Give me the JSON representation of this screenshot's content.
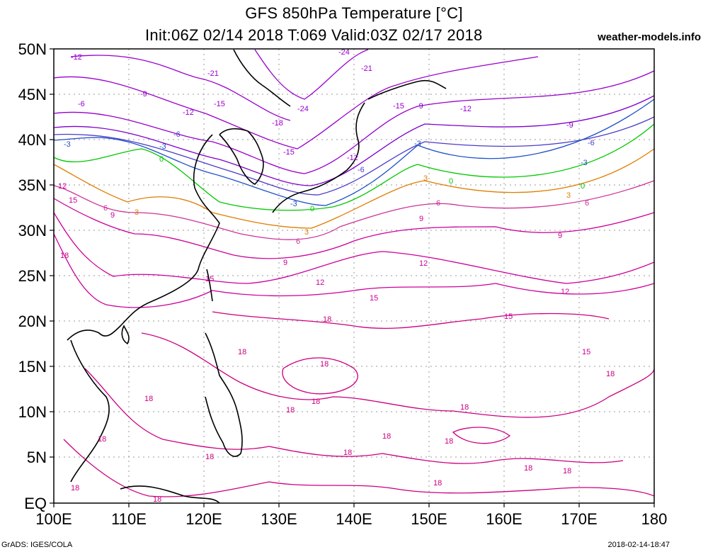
{
  "title": "GFS 850hPa Temperature [°C]",
  "subtitle": "Init:06Z 02/14 2018 T:069 Valid:03Z 02/17 2018",
  "site": "weather-models.info",
  "footer_left": "GrADS: IGES/COLA",
  "footer_right": "2018-02-14-18:47",
  "map": {
    "lon_ticks": [
      "100E",
      "110E",
      "120E",
      "130E",
      "140E",
      "150E",
      "160E",
      "170E",
      "180"
    ],
    "lat_ticks": [
      "50N",
      "45N",
      "40N",
      "35N",
      "30N",
      "25N",
      "20N",
      "15N",
      "10N",
      "5N",
      "EQ"
    ],
    "lon_range": [
      100,
      180
    ],
    "lat_range": [
      0,
      50
    ],
    "grid": "dotted"
  },
  "contours": [
    {
      "value": "-24",
      "color": "#9900cc"
    },
    {
      "value": "-21",
      "color": "#9900cc"
    },
    {
      "value": "-18",
      "color": "#9900cc"
    },
    {
      "value": "-15",
      "color": "#9900cc"
    },
    {
      "value": "-12",
      "color": "#9900cc"
    },
    {
      "value": "-9",
      "color": "#7f00cc"
    },
    {
      "value": "-6",
      "color": "#4b3cc8"
    },
    {
      "value": "-3",
      "color": "#1e50c8"
    },
    {
      "value": "0",
      "color": "#00c800"
    },
    {
      "value": "3",
      "color": "#e07d00"
    },
    {
      "value": "6",
      "color": "#cc3399"
    },
    {
      "value": "9",
      "color": "#cc0099"
    },
    {
      "value": "12",
      "color": "#cc0099"
    },
    {
      "value": "15",
      "color": "#cc0099"
    },
    {
      "value": "18",
      "color": "#cc0080"
    }
  ]
}
